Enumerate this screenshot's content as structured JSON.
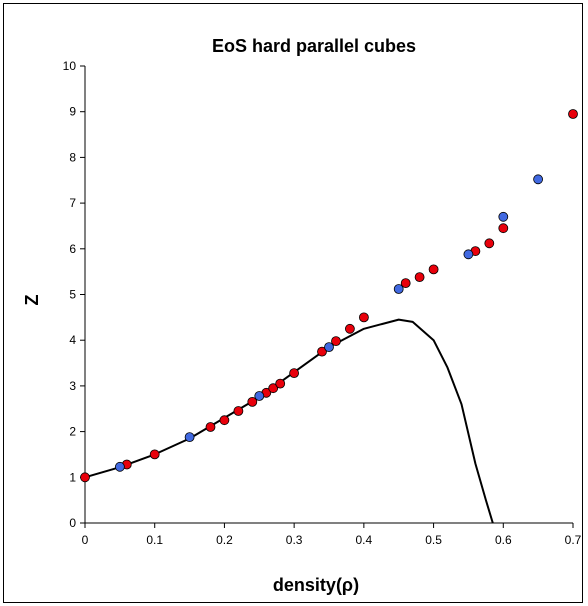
{
  "chart_data": {
    "type": "scatter",
    "title": "EoS hard parallel cubes",
    "xlabel": "density(ρ)",
    "ylabel": "Z",
    "xlim": [
      0,
      0.7
    ],
    "ylim": [
      0,
      10
    ],
    "xticks": [
      0,
      0.1,
      0.2,
      0.3,
      0.4,
      0.5,
      0.6,
      0.7
    ],
    "yticks": [
      0,
      1,
      2,
      3,
      4,
      5,
      6,
      7,
      8,
      9,
      10
    ],
    "xtick_labels": [
      "0",
      "0.1",
      "0.2",
      "0.3",
      "0.4",
      "0.5",
      "0.6",
      "0.7"
    ],
    "ytick_labels": [
      "0",
      "1",
      "2",
      "3",
      "4",
      "5",
      "6",
      "7",
      "8",
      "9",
      "10"
    ],
    "grid": false,
    "legend": "none",
    "series": [
      {
        "type": "scatter",
        "color": "#e8000b",
        "x": [
          0.0,
          0.06,
          0.1,
          0.18,
          0.2,
          0.22,
          0.24,
          0.26,
          0.27,
          0.28,
          0.3,
          0.34,
          0.36,
          0.38,
          0.4,
          0.46,
          0.48,
          0.5,
          0.56,
          0.58,
          0.6,
          0.7
        ],
        "y": [
          1.0,
          1.28,
          1.5,
          2.1,
          2.25,
          2.45,
          2.65,
          2.85,
          2.95,
          3.05,
          3.28,
          3.75,
          3.98,
          4.25,
          4.5,
          5.25,
          5.38,
          5.55,
          5.95,
          6.12,
          6.45,
          8.95
        ]
      },
      {
        "type": "scatter",
        "color": "#4169e1",
        "x": [
          0.05,
          0.15,
          0.25,
          0.35,
          0.45,
          0.55,
          0.6,
          0.65
        ],
        "y": [
          1.23,
          1.88,
          2.78,
          3.85,
          5.12,
          5.88,
          6.7,
          7.52
        ]
      },
      {
        "type": "line",
        "color": "#000000",
        "x": [
          0.0,
          0.05,
          0.1,
          0.15,
          0.2,
          0.25,
          0.3,
          0.35,
          0.4,
          0.45,
          0.47,
          0.5,
          0.52,
          0.54,
          0.56,
          0.575,
          0.585
        ],
        "y": [
          1.0,
          1.22,
          1.5,
          1.85,
          2.3,
          2.75,
          3.3,
          3.85,
          4.25,
          4.45,
          4.4,
          4.0,
          3.4,
          2.6,
          1.3,
          0.5,
          0.0
        ]
      }
    ]
  }
}
